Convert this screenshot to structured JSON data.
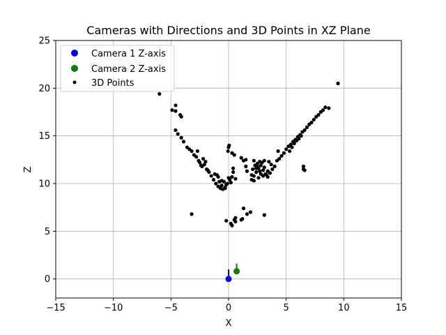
{
  "chart_data": {
    "type": "scatter",
    "title": "Cameras with Directions and 3D Points in XZ Plane",
    "xlabel": "X",
    "ylabel": "Z",
    "xlim": [
      -15,
      15
    ],
    "ylim": [
      -2,
      25
    ],
    "xticks": [
      -15,
      -10,
      -5,
      0,
      5,
      10,
      15
    ],
    "yticks": [
      0,
      5,
      10,
      15,
      20,
      25
    ],
    "xtick_labels": [
      "−15",
      "−10",
      "−5",
      "0",
      "5",
      "10",
      "15"
    ],
    "ytick_labels": [
      "0",
      "5",
      "10",
      "15",
      "20",
      "25"
    ],
    "grid": true,
    "legend_placement": "upper-left",
    "legend": [
      {
        "label": "Camera 1 Z-axis",
        "color": "#0000ff"
      },
      {
        "label": "Camera 2 Z-axis",
        "color": "#008000"
      },
      {
        "label": "3D Points",
        "color": "#000000"
      }
    ],
    "cameras": [
      {
        "name": "Camera 1 Z-axis",
        "x": 0.0,
        "z": 0.0,
        "dir_x": 0.0,
        "dir_z": 1.0,
        "color": "#0000ff"
      },
      {
        "name": "Camera 2 Z-axis",
        "x": 0.7,
        "z": 0.8,
        "dir_x": 0.0,
        "dir_z": 0.8,
        "color": "#008000"
      }
    ],
    "points": {
      "name": "3D Points",
      "color": "#000000",
      "x": [
        -6.0,
        -4.9,
        -4.6,
        -4.6,
        -4.2,
        -4.1,
        -4.6,
        -4.4,
        -4.1,
        -3.9,
        -3.6,
        -3.4,
        -3.2,
        -3.0,
        -2.8,
        -2.6,
        -2.5,
        -2.7,
        -2.3,
        -2.1,
        -1.9,
        -1.7,
        -1.5,
        -1.3,
        -1.1,
        -0.9,
        -0.7,
        -0.5,
        -0.3,
        -0.1,
        0.1,
        -0.4,
        -0.2,
        0.0,
        -0.9,
        -0.6,
        -2.2,
        -2.4,
        -2.0,
        -1.8,
        -1.2,
        -1.0,
        -0.8,
        -0.6,
        -0.3,
        0.2,
        0.0,
        0.05,
        -0.05,
        0.3,
        0.5,
        0.4,
        0.4,
        0.6,
        0.3,
        1.1,
        1.3,
        1.5,
        1.6,
        2.0,
        2.2,
        2.4,
        2.6,
        2.8,
        3.0,
        3.2,
        3.4,
        3.6,
        3.8,
        4.0,
        2.1,
        2.3,
        2.5,
        2.7,
        2.9,
        3.1,
        3.3,
        3.5,
        3.7,
        2.0,
        2.2,
        2.6,
        3.0,
        3.4,
        3.1,
        2.8,
        2.4,
        2.2,
        4.2,
        4.4,
        4.6,
        4.8,
        5.0,
        5.2,
        5.4,
        5.6,
        5.8,
        6.0,
        6.2,
        6.4,
        6.6,
        6.8,
        7.0,
        7.2,
        7.4,
        7.6,
        7.8,
        8.0,
        8.2,
        8.4,
        8.7,
        9.5,
        5.3,
        5.5,
        5.7,
        5.9,
        6.1,
        6.3,
        6.5,
        6.5,
        6.6,
        4.3,
        1.5,
        2.5,
        2.7,
        -0.2,
        -3.2,
        0.2,
        0.3,
        0.5,
        0.6,
        1.1,
        1.2,
        1.3,
        1.6,
        1.9,
        3.1,
        0.6
      ],
      "y": [
        19.4,
        17.7,
        18.2,
        17.6,
        17.2,
        17.0,
        15.6,
        15.2,
        14.8,
        14.4,
        13.8,
        13.6,
        13.4,
        13.0,
        12.8,
        12.4,
        12.2,
        13.4,
        11.8,
        12.0,
        11.5,
        11.2,
        10.8,
        10.4,
        10.0,
        9.7,
        9.5,
        9.4,
        9.6,
        10.0,
        10.4,
        10.2,
        9.9,
        10.6,
        10.7,
        10.3,
        12.6,
        11.9,
        12.3,
        11.4,
        11.0,
        10.9,
        10.2,
        9.8,
        9.5,
        10.1,
        13.8,
        14.0,
        13.4,
        13.2,
        13.0,
        11.2,
        11.6,
        10.5,
        10.7,
        12.7,
        12.4,
        11.8,
        11.3,
        10.4,
        10.8,
        11.2,
        11.6,
        11.9,
        11.4,
        11.0,
        10.7,
        11.1,
        11.5,
        11.8,
        11.5,
        11.9,
        12.1,
        11.3,
        12.2,
        11.7,
        10.9,
        12.3,
        12.0,
        10.9,
        10.3,
        10.6,
        10.8,
        11.3,
        12.4,
        11.0,
        11.6,
        12.4,
        12.4,
        12.6,
        12.9,
        13.2,
        13.6,
        13.9,
        14.1,
        14.4,
        14.6,
        14.9,
        15.1,
        15.4,
        15.6,
        15.9,
        16.2,
        16.4,
        16.7,
        17.0,
        17.2,
        17.5,
        17.7,
        18.0,
        17.9,
        20.5,
        13.4,
        13.8,
        14.2,
        14.5,
        14.7,
        15.0,
        11.5,
        11.8,
        11.4,
        13.4,
        12.5,
        11.8,
        12.3,
        6.1,
        6.8,
        5.8,
        5.6,
        6.2,
        6.4,
        6.2,
        6.3,
        7.4,
        6.8,
        7.0,
        6.7,
        6.0
      ]
    }
  }
}
